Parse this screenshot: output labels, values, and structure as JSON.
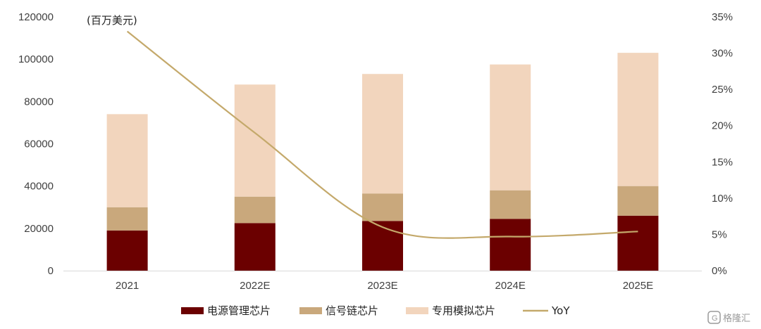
{
  "chart_data": {
    "type": "bar",
    "stacked": true,
    "unit_label": "(百万美元)",
    "categories": [
      "2021",
      "2022E",
      "2023E",
      "2024E",
      "2025E"
    ],
    "series": [
      {
        "name": "电源管理芯片",
        "color": "#6b0000",
        "values": [
          19000,
          22500,
          23500,
          24500,
          26000
        ]
      },
      {
        "name": "信号链芯片",
        "color": "#c9a87c",
        "values": [
          11000,
          12500,
          13000,
          13500,
          14000
        ]
      },
      {
        "name": "专用模拟芯片",
        "color": "#f2d5bd",
        "values": [
          44000,
          53000,
          56500,
          59500,
          63000
        ]
      }
    ],
    "line_series": {
      "name": "YoY",
      "color": "#c4a96b",
      "axis": "right",
      "values": [
        0.33,
        0.19,
        0.06,
        0.047,
        0.054
      ]
    },
    "ylim_left": [
      0,
      120000
    ],
    "yticks_left": [
      "0",
      "20000",
      "40000",
      "60000",
      "80000",
      "100000",
      "120000"
    ],
    "ylim_right": [
      0,
      0.35
    ],
    "yticks_right": [
      "0%",
      "5%",
      "10%",
      "15%",
      "20%",
      "25%",
      "30%",
      "35%"
    ],
    "grid": false,
    "legend_position": "bottom"
  },
  "watermark": {
    "text": "格隆汇"
  }
}
